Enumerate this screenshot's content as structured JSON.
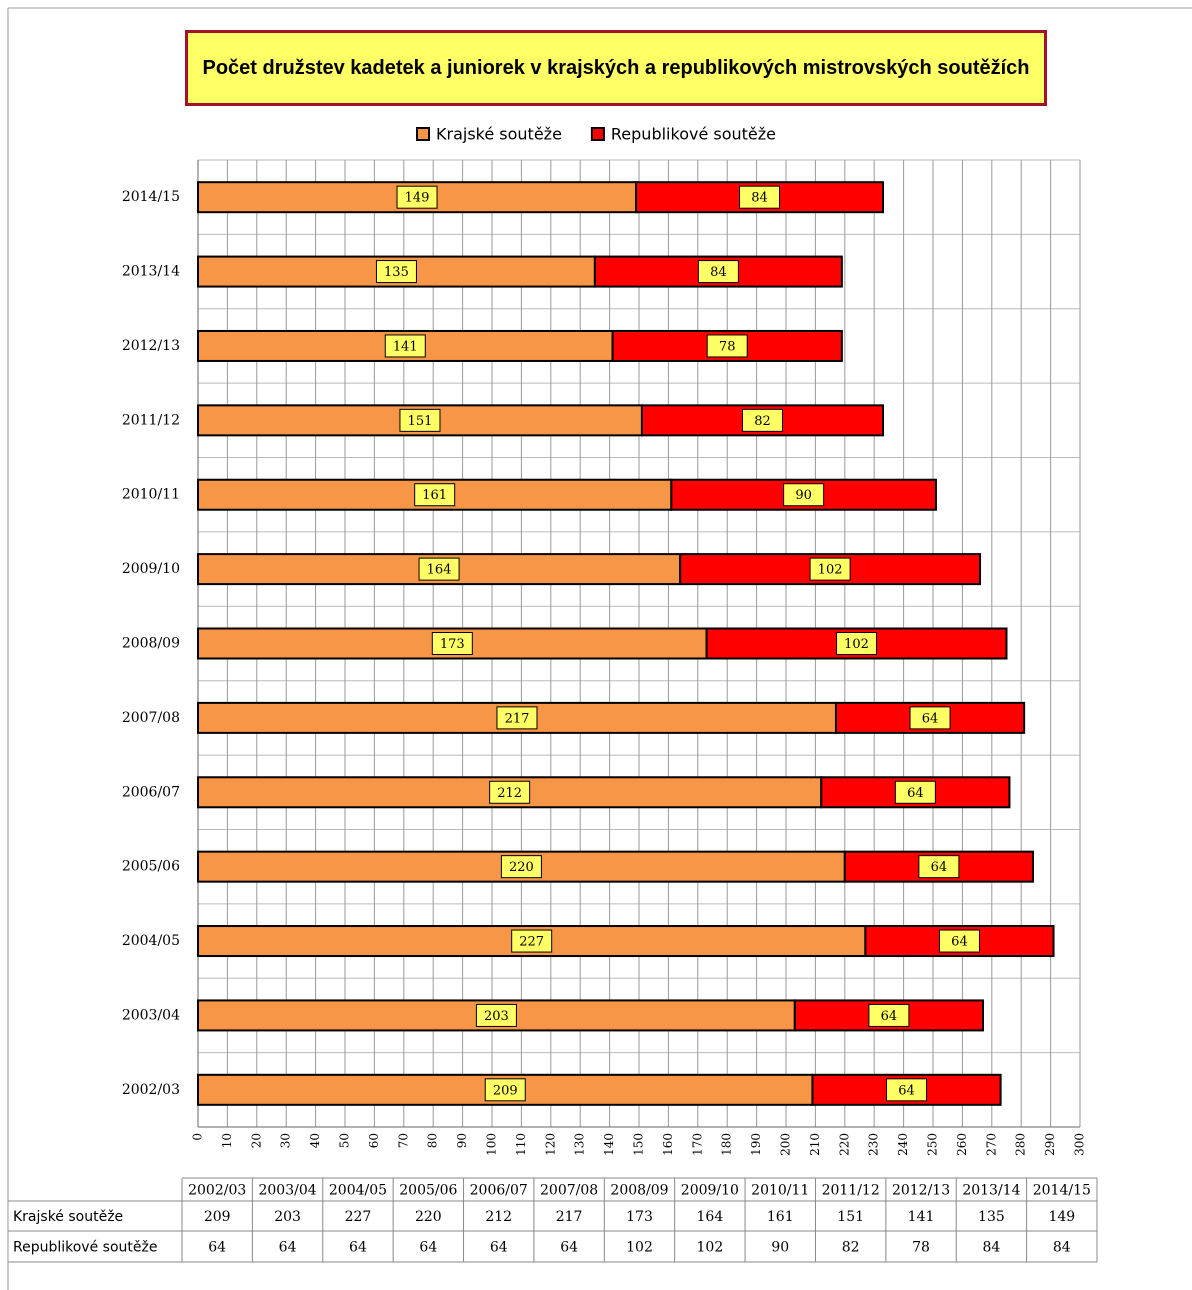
{
  "chart_data": {
    "type": "stacked-barh",
    "title": "Počet družstev kadetek a juniorek v krajských a republikových mistrovských soutěžích",
    "categories": [
      "2002/03",
      "2003/04",
      "2004/05",
      "2005/06",
      "2006/07",
      "2007/08",
      "2008/09",
      "2009/10",
      "2010/11",
      "2011/12",
      "2012/13",
      "2013/14",
      "2014/15"
    ],
    "series": [
      {
        "name": "Krajské soutěže",
        "color": "#f79646",
        "values": [
          209,
          203,
          227,
          220,
          212,
          217,
          173,
          164,
          161,
          151,
          141,
          135,
          149
        ]
      },
      {
        "name": "Republikové soutěže",
        "color": "#ff0000",
        "values": [
          64,
          64,
          64,
          64,
          64,
          64,
          102,
          102,
          90,
          82,
          78,
          84,
          84
        ]
      }
    ],
    "xlim": [
      0,
      300
    ],
    "xticks": [
      0,
      10,
      20,
      30,
      40,
      50,
      60,
      70,
      80,
      90,
      100,
      110,
      120,
      130,
      140,
      150,
      160,
      170,
      180,
      190,
      200,
      210,
      220,
      230,
      240,
      250,
      260,
      270,
      280,
      290,
      300
    ],
    "grid": true,
    "legend": "top",
    "data_table": true
  }
}
